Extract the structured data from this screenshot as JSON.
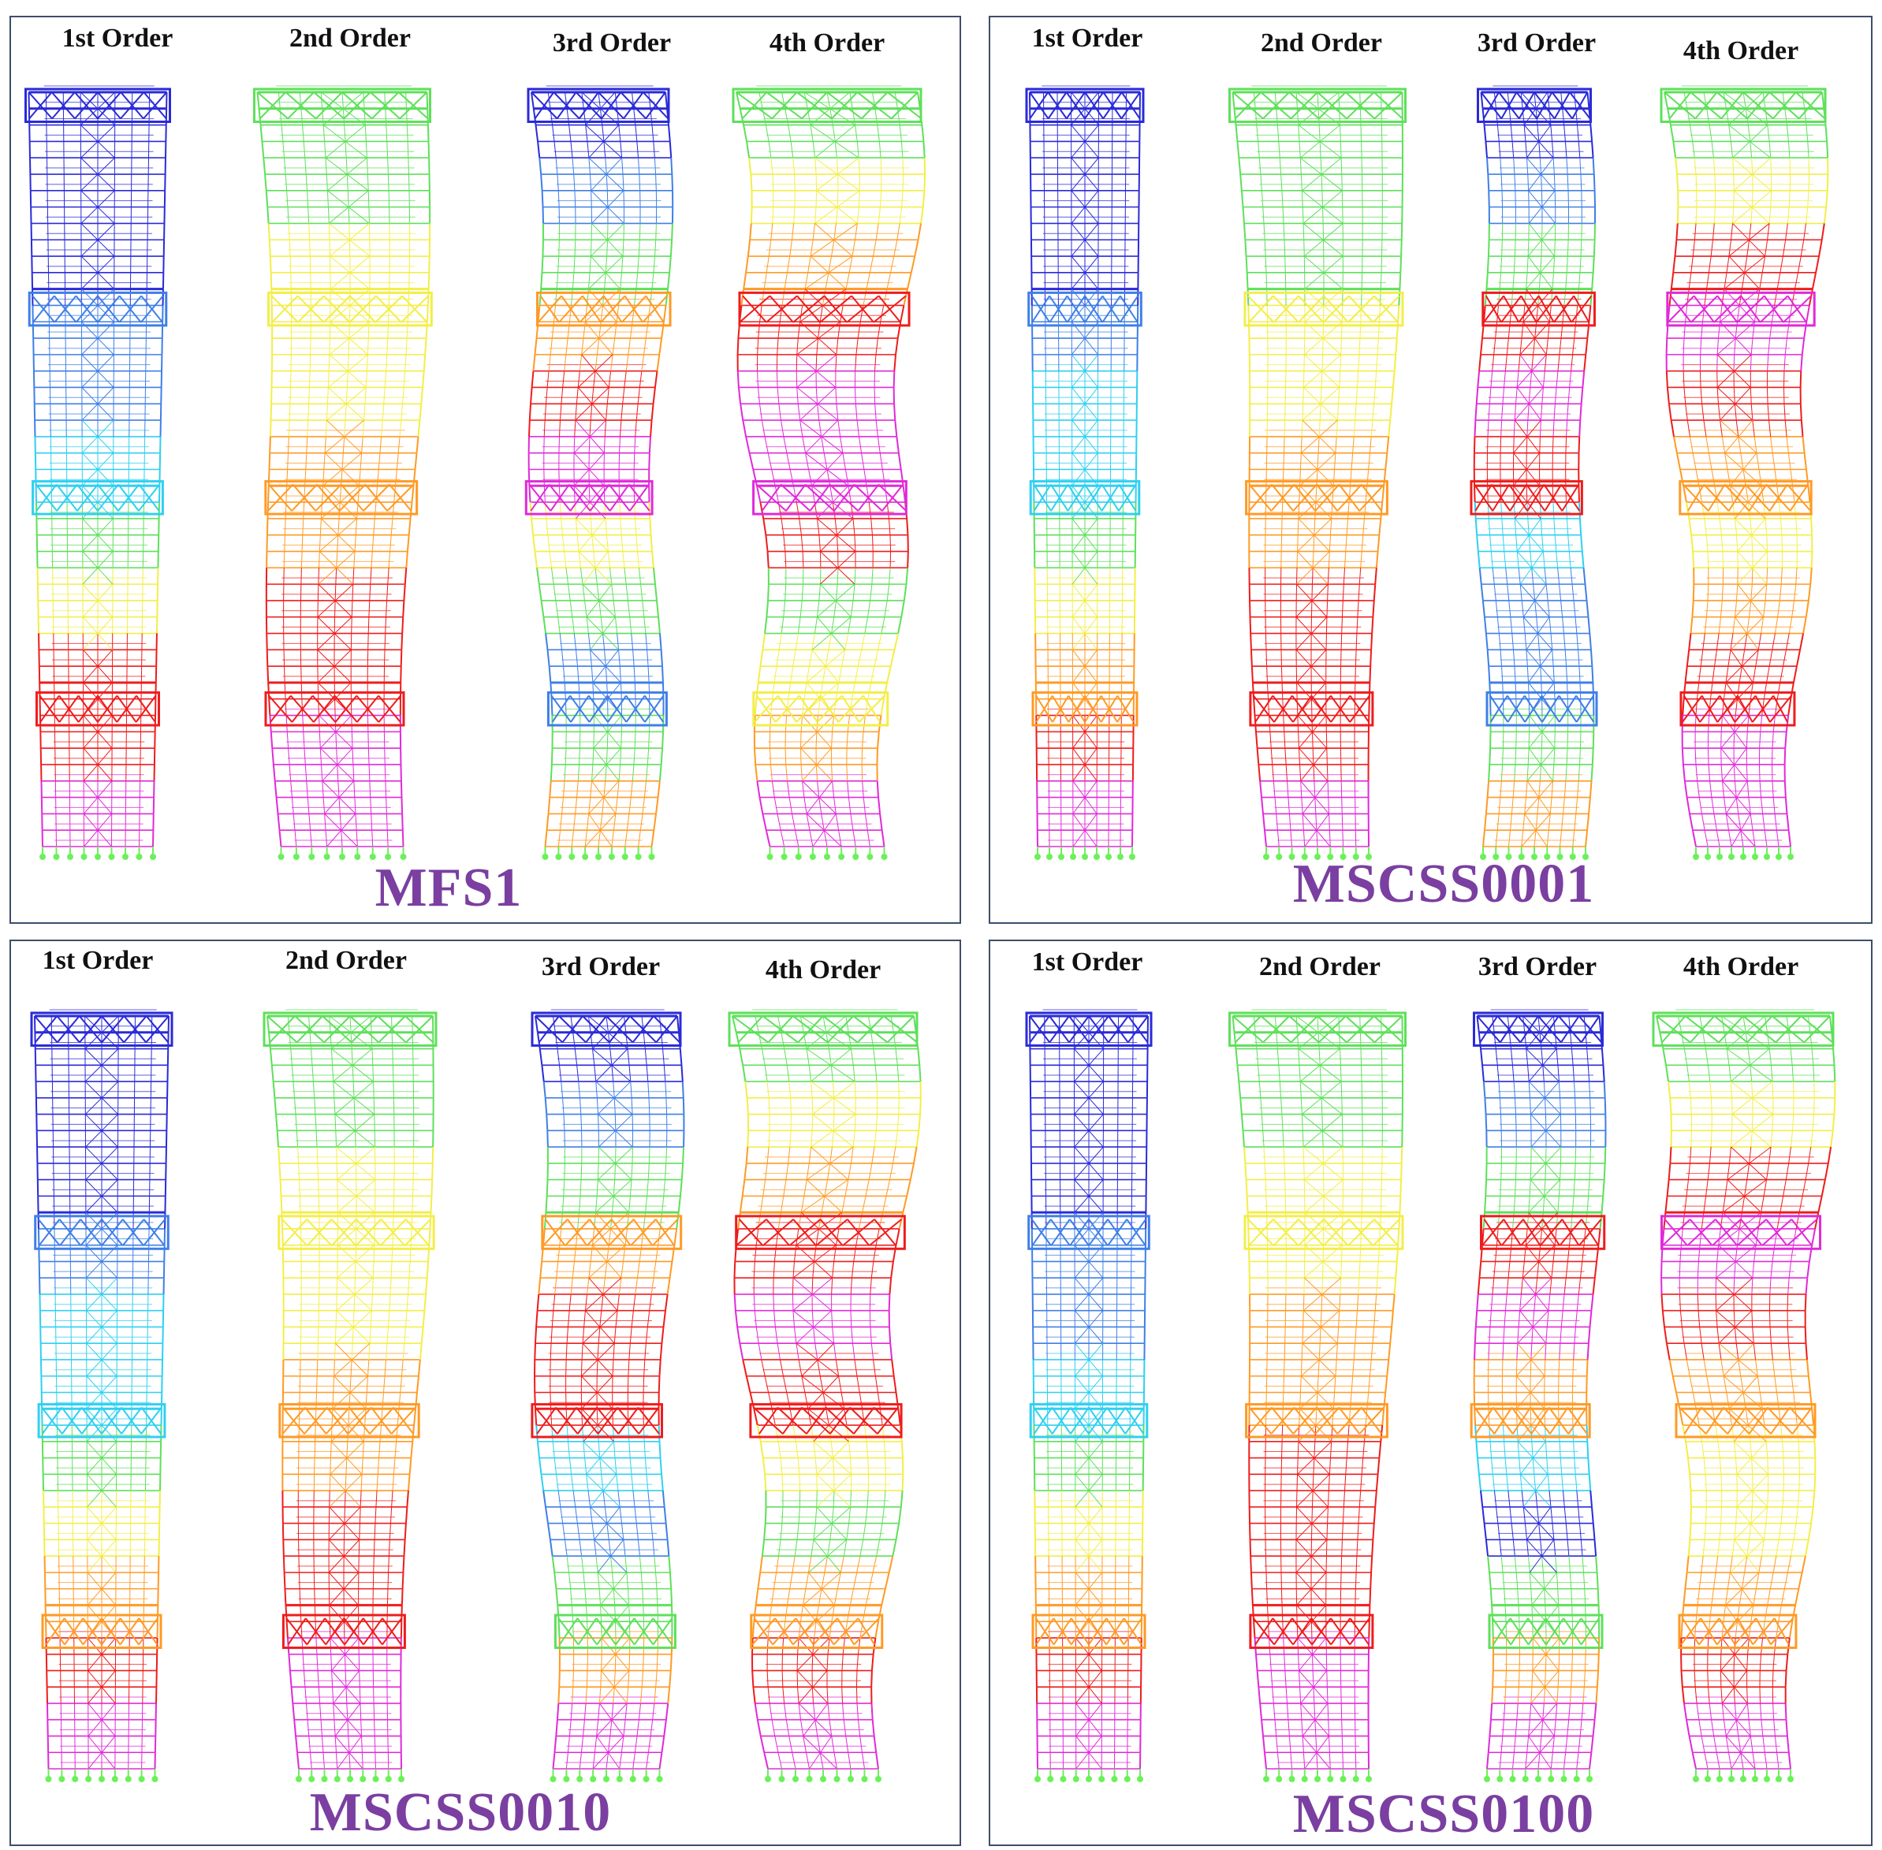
{
  "colors": {
    "border": "#3e4d6b",
    "model_label": "#7a3fa0",
    "contour": [
      "#2a2ad8",
      "#3f7fe6",
      "#2fd0f0",
      "#5ee05a",
      "#f3ee48",
      "#ff9a25",
      "#ee1c1c",
      "#e02ad8"
    ],
    "support": "#6cf05a"
  },
  "panels": [
    {
      "model": "MFS1",
      "orders": [
        {
          "label": "1st Order",
          "bands": [
            0,
            0,
            0,
            1,
            1,
            2,
            3,
            4,
            6,
            6,
            7
          ]
        },
        {
          "label": "2nd Order",
          "bands": [
            3,
            3,
            4,
            4,
            4,
            5,
            5,
            6,
            6,
            7,
            7
          ]
        },
        {
          "label": "3rd Order",
          "bands": [
            0,
            1,
            3,
            5,
            6,
            7,
            4,
            3,
            1,
            3,
            5
          ]
        },
        {
          "label": "4th Order",
          "bands": [
            3,
            4,
            5,
            6,
            7,
            7,
            6,
            3,
            4,
            5,
            7
          ]
        }
      ]
    },
    {
      "model": "MSCSS0001",
      "orders": [
        {
          "label": "1st Order",
          "bands": [
            0,
            0,
            0,
            1,
            2,
            2,
            3,
            4,
            5,
            6,
            7
          ]
        },
        {
          "label": "2nd Order",
          "bands": [
            3,
            3,
            3,
            4,
            4,
            5,
            5,
            6,
            6,
            6,
            7
          ]
        },
        {
          "label": "3rd Order",
          "bands": [
            0,
            1,
            3,
            6,
            7,
            6,
            2,
            1,
            1,
            3,
            5
          ]
        },
        {
          "label": "4th Order",
          "bands": [
            3,
            4,
            6,
            7,
            6,
            5,
            4,
            5,
            6,
            7,
            7
          ]
        }
      ]
    },
    {
      "model": "MSCSS0010",
      "orders": [
        {
          "label": "1st Order",
          "bands": [
            0,
            0,
            0,
            1,
            2,
            2,
            3,
            4,
            5,
            6,
            7
          ]
        },
        {
          "label": "2nd Order",
          "bands": [
            3,
            3,
            4,
            4,
            4,
            5,
            5,
            6,
            6,
            7,
            7
          ]
        },
        {
          "label": "3rd Order",
          "bands": [
            0,
            1,
            3,
            5,
            6,
            6,
            2,
            1,
            3,
            5,
            7
          ]
        },
        {
          "label": "4th Order",
          "bands": [
            3,
            4,
            5,
            6,
            7,
            6,
            4,
            3,
            5,
            6,
            7
          ]
        }
      ]
    },
    {
      "model": "MSCSS0100",
      "orders": [
        {
          "label": "1st Order",
          "bands": [
            0,
            0,
            0,
            1,
            1,
            2,
            3,
            4,
            5,
            6,
            7
          ]
        },
        {
          "label": "2nd Order",
          "bands": [
            3,
            3,
            4,
            4,
            5,
            5,
            6,
            6,
            6,
            7,
            7
          ]
        },
        {
          "label": "3rd Order",
          "bands": [
            0,
            1,
            3,
            6,
            7,
            5,
            2,
            0,
            3,
            5,
            7
          ]
        },
        {
          "label": "4th Order",
          "bands": [
            3,
            4,
            6,
            7,
            6,
            5,
            4,
            4,
            5,
            6,
            7
          ]
        }
      ]
    }
  ]
}
